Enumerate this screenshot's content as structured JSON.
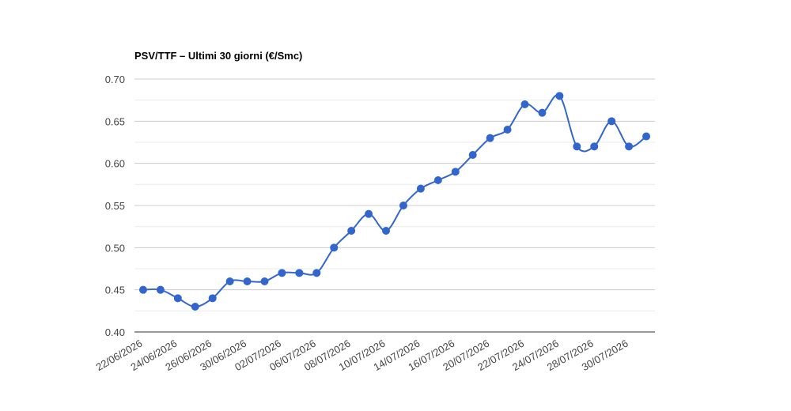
{
  "chart_data": {
    "type": "line",
    "title": "PSV/TTF – Ultimi 30 giorni (€/Smc)",
    "categories": [
      "22/06/2026",
      null,
      "24/06/2026",
      null,
      "26/06/2026",
      null,
      "30/06/2026",
      null,
      "02/07/2026",
      null,
      "06/07/2026",
      null,
      "08/07/2026",
      null,
      "10/07/2026",
      null,
      "14/07/2026",
      null,
      "16/07/2026",
      null,
      "20/07/2026",
      null,
      "22/07/2026",
      null,
      "24/07/2026",
      null,
      "28/07/2026",
      null,
      "30/07/2026",
      null
    ],
    "series": [
      {
        "name": "PSV/TTF",
        "color": "#3366cc",
        "values": [
          0.45,
          0.45,
          0.44,
          0.43,
          0.44,
          0.46,
          0.46,
          0.46,
          0.47,
          0.47,
          0.47,
          0.5,
          0.52,
          0.54,
          0.52,
          0.55,
          0.57,
          0.58,
          0.59,
          0.61,
          0.63,
          0.64,
          0.67,
          0.66,
          0.68,
          0.62,
          0.62,
          0.65,
          0.62,
          0.632
        ]
      }
    ],
    "ylim": [
      0.4,
      0.7
    ],
    "yticks": [
      {
        "value": 0.4,
        "label": "0.40"
      },
      {
        "value": 0.45,
        "label": "0.45"
      },
      {
        "value": 0.5,
        "label": "0.50"
      },
      {
        "value": 0.55,
        "label": "0.55"
      },
      {
        "value": 0.6,
        "label": "0.60"
      },
      {
        "value": 0.65,
        "label": "0.65"
      },
      {
        "value": 0.7,
        "label": "0.70"
      }
    ],
    "grid": true,
    "smooth": true
  }
}
